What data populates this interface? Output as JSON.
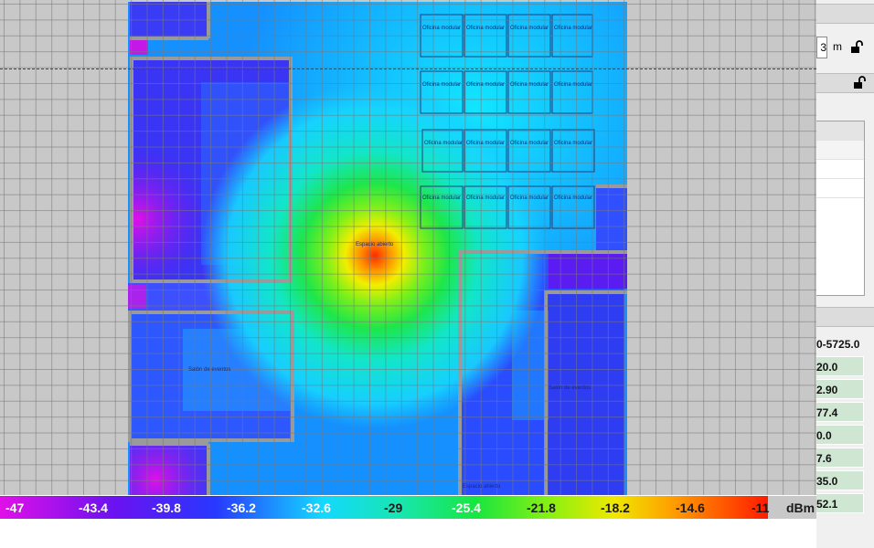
{
  "scale": {
    "value": "3",
    "unit": "m"
  },
  "room_labels": {
    "oficina": "Oficina modular",
    "salon": "Salón de eventos",
    "espacio": "Espacio abierto"
  },
  "frequency_range": "0-5725.0",
  "values": [
    "20.0",
    "2.90",
    "77.4",
    "0.0",
    "7.6",
    "35.0",
    "52.1"
  ],
  "legend": {
    "ticks": [
      "-47",
      "-43.4",
      "-39.8",
      "-36.2",
      "-32.6",
      "-29",
      "-25.4",
      "-21.8",
      "-18.2",
      "-14.6",
      "-11"
    ],
    "unit": "dBm"
  },
  "colors": {
    "min": "#e010e8",
    "low": "#2838ff",
    "mid": "#13d9ff",
    "high": "#f0e800",
    "max": "#ff1a00"
  }
}
